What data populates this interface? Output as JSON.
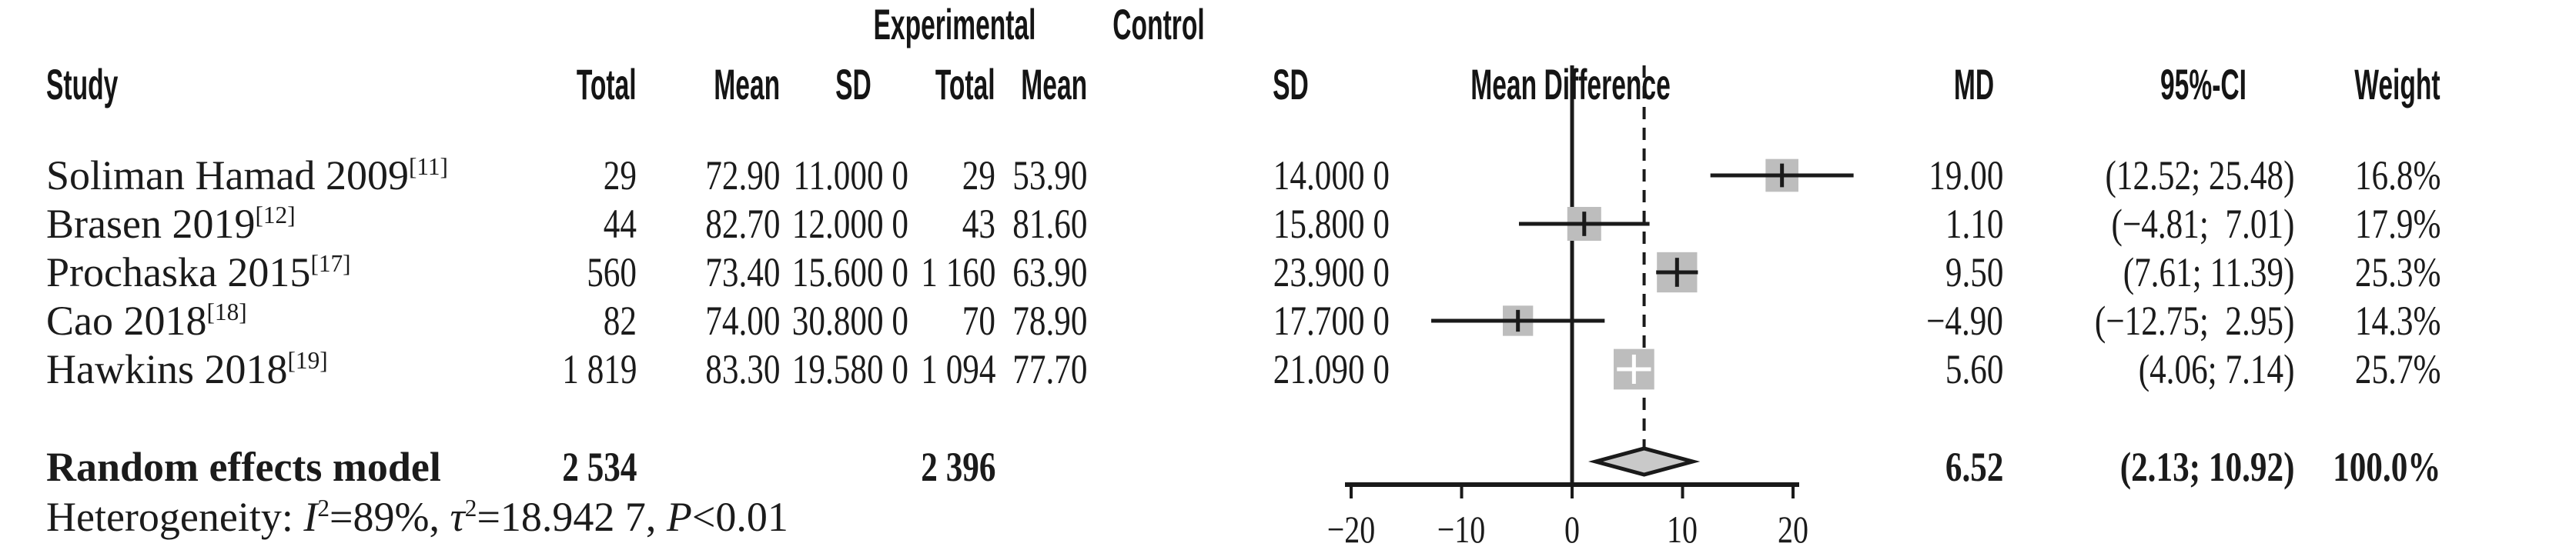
{
  "header": {
    "group_experimental": "Experimental",
    "group_control": "Control",
    "col_study": "Study",
    "col_total": "Total",
    "col_mean": "Mean",
    "col_sd": "SD",
    "col_mean_difference": "Mean Difference",
    "col_md": "MD",
    "col_ci": "95%-CI",
    "col_weight": "Weight"
  },
  "chart_data": {
    "type": "forest",
    "effect_measure": "Mean Difference",
    "axis": {
      "ticks": [
        -20,
        -10,
        0,
        10,
        20
      ],
      "tick_labels": [
        "−20",
        "−10",
        "0",
        "10",
        "20"
      ],
      "xlim": [
        -20,
        25.5
      ],
      "reference_line": 0,
      "pooled_line": 6.52
    },
    "studies": [
      {
        "name": "Soliman Hamad 2009",
        "ref": "[11]",
        "exp_total": "29",
        "exp_mean": "72.90",
        "exp_sd": "11.000 0",
        "ctl_total": "29",
        "ctl_mean": "53.90",
        "ctl_sd": "14.000 0",
        "md": "19.00",
        "md_val": 19.0,
        "ci": "(12.52; 25.48)",
        "ci_lo": 12.52,
        "ci_hi": 25.48,
        "weight": "16.8%",
        "weight_val": 16.8
      },
      {
        "name": "Brasen 2019",
        "ref": "[12]",
        "exp_total": "44",
        "exp_mean": "82.70",
        "exp_sd": "12.000 0",
        "ctl_total": "43",
        "ctl_mean": "81.60",
        "ctl_sd": "15.800 0",
        "md": "1.10",
        "md_val": 1.1,
        "ci": "(−4.81;  7.01)",
        "ci_lo": -4.81,
        "ci_hi": 7.01,
        "weight": "17.9%",
        "weight_val": 17.9
      },
      {
        "name": "Prochaska 2015",
        "ref": "[17]",
        "exp_total": "560",
        "exp_mean": "73.40",
        "exp_sd": "15.600 0",
        "ctl_total": "1 160",
        "ctl_mean": "63.90",
        "ctl_sd": "23.900 0",
        "md": "9.50",
        "md_val": 9.5,
        "ci": "(7.61; 11.39)",
        "ci_lo": 7.61,
        "ci_hi": 11.39,
        "weight": "25.3%",
        "weight_val": 25.3
      },
      {
        "name": "Cao 2018",
        "ref": "[18]",
        "exp_total": "82",
        "exp_mean": "74.00",
        "exp_sd": "30.800 0",
        "ctl_total": "70",
        "ctl_mean": "78.90",
        "ctl_sd": "17.700 0",
        "md": "−4.90",
        "md_val": -4.9,
        "ci": "(−12.75;  2.95)",
        "ci_lo": -12.75,
        "ci_hi": 2.95,
        "weight": "14.3%",
        "weight_val": 14.3
      },
      {
        "name": "Hawkins 2018",
        "ref": "[19]",
        "exp_total": "1 819",
        "exp_mean": "83.30",
        "exp_sd": "19.580 0",
        "ctl_total": "1 094",
        "ctl_mean": "77.70",
        "ctl_sd": "21.090 0",
        "md": "5.60",
        "md_val": 5.6,
        "ci": "(4.06; 7.14)",
        "ci_lo": 4.06,
        "ci_hi": 7.14,
        "weight": "25.7%",
        "weight_val": 25.7
      }
    ],
    "pooled": {
      "label": "Random effects model",
      "exp_total": "2 534",
      "ctl_total": "2 396",
      "md": "6.52",
      "md_val": 6.52,
      "ci": "(2.13; 10.92)",
      "ci_lo": 2.13,
      "ci_hi": 10.92,
      "weight": "100.0%"
    },
    "heterogeneity": {
      "prefix": "Heterogeneity: ",
      "i_sym": "I",
      "i_sup": "2",
      "i_rest": "=89%, ",
      "tau_sym": "τ",
      "tau_sup": "2",
      "tau_rest": "=18.942 7, ",
      "p_sym": "P",
      "p_rest": "<0.01"
    }
  },
  "colors": {
    "background": "#ffffff",
    "text": "#1b1b1b",
    "line": "#1a1a1a",
    "square": "#bdbdbd",
    "diamond_fill": "#c9c9c9",
    "white_marker": "#ffffff"
  }
}
